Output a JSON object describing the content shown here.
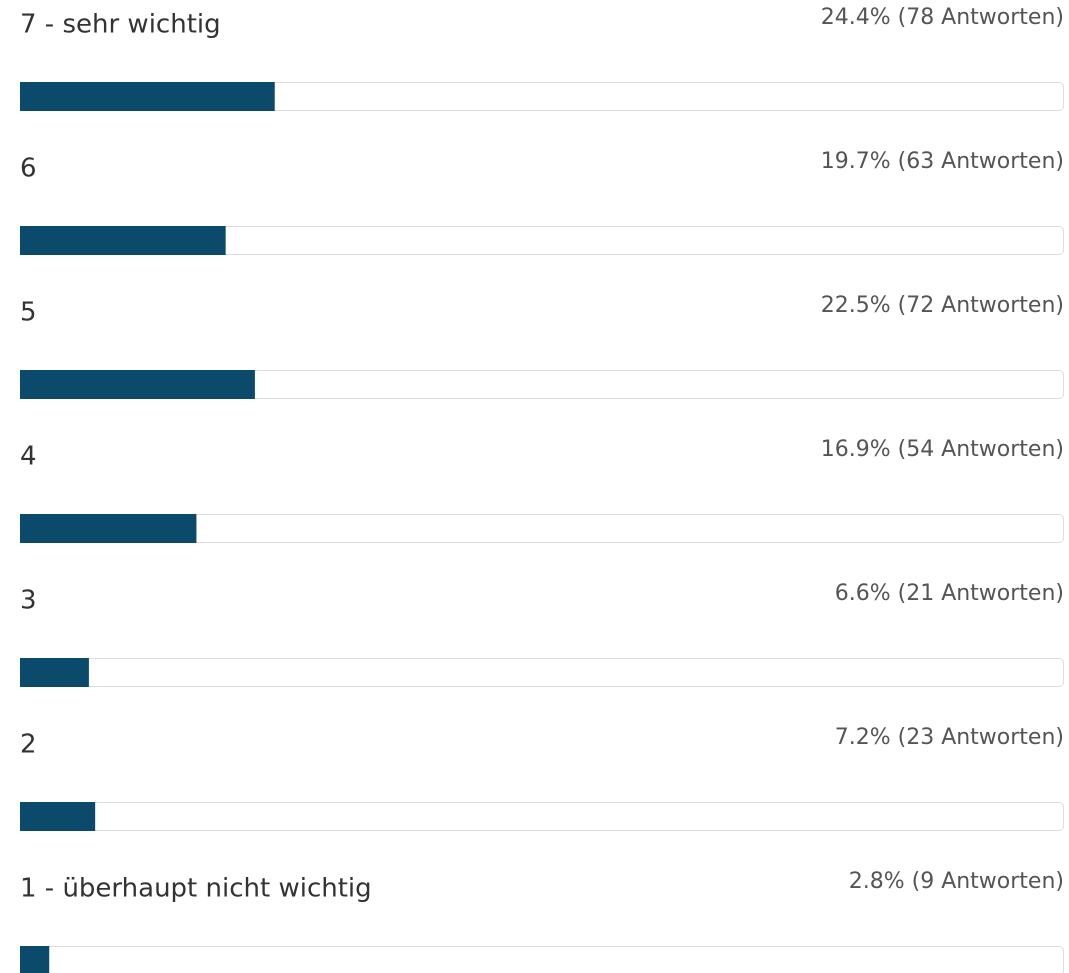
{
  "chart_data": {
    "type": "bar",
    "orientation": "horizontal",
    "color": "#0b4a6a",
    "categories": [
      "7 - sehr wichtig",
      "6",
      "5",
      "4",
      "3",
      "2",
      "1 - überhaupt nicht wichtig"
    ],
    "values": [
      24.4,
      19.7,
      22.5,
      16.9,
      6.6,
      7.2,
      2.8
    ],
    "value_labels": [
      "24.4% (78 Antworten)",
      "19.7% (63 Antworten)",
      "22.5% (72 Antworten)",
      "16.9% (54 Antworten)",
      "6.6% (21 Antworten)",
      "7.2% (23 Antworten)",
      "2.8% (9 Antworten)"
    ],
    "xlim": [
      0,
      100
    ]
  }
}
